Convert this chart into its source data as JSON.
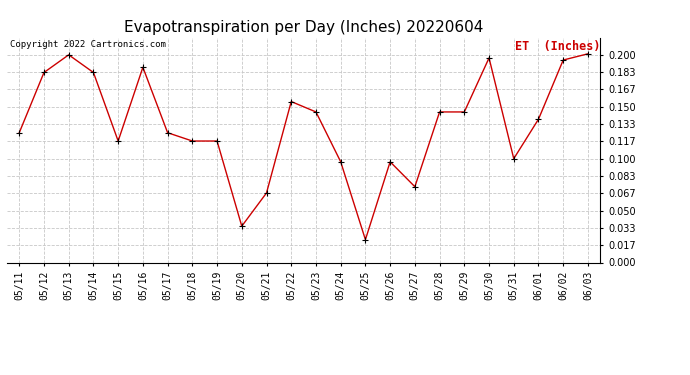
{
  "title": "Evapotranspiration per Day (Inches) 20220604",
  "copyright": "Copyright 2022 Cartronics.com",
  "legend_label": "ET  (Inches)",
  "dates": [
    "05/11",
    "05/12",
    "05/13",
    "05/14",
    "05/15",
    "05/16",
    "05/17",
    "05/18",
    "05/19",
    "05/20",
    "05/21",
    "05/22",
    "05/23",
    "05/24",
    "05/25",
    "05/26",
    "05/27",
    "05/28",
    "05/29",
    "05/30",
    "05/31",
    "06/01",
    "06/02",
    "06/03"
  ],
  "values": [
    0.125,
    0.183,
    0.2,
    0.183,
    0.117,
    0.188,
    0.125,
    0.117,
    0.117,
    0.035,
    0.067,
    0.155,
    0.145,
    0.097,
    0.022,
    0.097,
    0.073,
    0.145,
    0.145,
    0.197,
    0.1,
    0.138,
    0.195,
    0.201
  ],
  "line_color": "#cc0000",
  "marker_color": "#000000",
  "title_fontsize": 11,
  "copyright_fontsize": 6.5,
  "legend_fontsize": 8.5,
  "tick_fontsize": 7,
  "ylim": [
    0.0,
    0.2167
  ],
  "yticks": [
    0.0,
    0.017,
    0.033,
    0.05,
    0.067,
    0.083,
    0.1,
    0.117,
    0.133,
    0.15,
    0.167,
    0.183,
    0.2
  ],
  "background_color": "#ffffff",
  "grid_color": "#c8c8c8"
}
